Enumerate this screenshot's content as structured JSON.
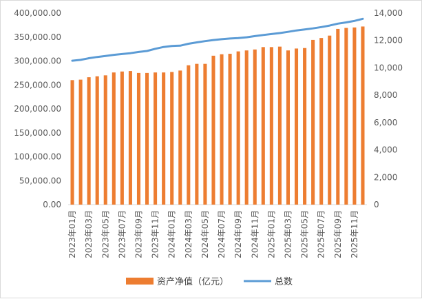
{
  "chart_data": {
    "type": "bar+line",
    "colors": {
      "bar": "#ed7d31",
      "line": "#5b9bd5",
      "axis": "#d9d9d9"
    },
    "left_axis": {
      "ylim": [
        0,
        400000
      ],
      "ticks": [
        "0.00",
        "50,000.00",
        "100,000.00",
        "150,000.00",
        "200,000.00",
        "250,000.00",
        "300,000.00",
        "350,000.00",
        "400,000.00"
      ]
    },
    "right_axis": {
      "ylim": [
        0,
        14000
      ],
      "ticks": [
        "0",
        "2,000",
        "4,000",
        "6,000",
        "8,000",
        "10,000",
        "12,000",
        "14,000"
      ]
    },
    "categories": [
      "2023年01月",
      "2023年02月",
      "2023年03月",
      "2023年04月",
      "2023年05月",
      "2023年06月",
      "2023年07月",
      "2023年08月",
      "2023年09月",
      "2023年10月",
      "2023年11月",
      "2023年12月",
      "2024年01月",
      "2024年02月",
      "2024年03月",
      "2024年04月",
      "2024年05月",
      "2024年06月",
      "2024年07月",
      "2024年08月",
      "2024年09月",
      "2024年10月",
      "2024年11月",
      "2024年12月",
      "2025年01月",
      "2025年02月",
      "2025年03月",
      "2025年04月",
      "2025年05月",
      "2025年06月",
      "2025年07月",
      "2025年08月",
      "2025年09月",
      "2025年10月",
      "2025年11月",
      "2025年12月"
    ],
    "x_tick_labels": [
      "2023年01月",
      "2023年03月",
      "2023年05月",
      "2023年07月",
      "2023年09月",
      "2023年11月",
      "2024年01月",
      "2024年03月",
      "2024年05月",
      "2024年07月",
      "2024年09月",
      "2024年11月",
      "2025年01月",
      "2025年03月",
      "2025年05月",
      "2025年07月",
      "2025年09月",
      "2025年11月"
    ],
    "series": [
      {
        "name": "资产净值（亿元）",
        "type": "bar",
        "axis": "left",
        "values": [
          260000,
          261000,
          266000,
          268000,
          270000,
          276000,
          278000,
          279000,
          275000,
          275000,
          276000,
          276000,
          277000,
          280000,
          291000,
          294000,
          294000,
          311000,
          314000,
          315000,
          320000,
          322000,
          324000,
          329000,
          329000,
          330000,
          322000,
          326000,
          327000,
          344000,
          348000,
          353000,
          367000,
          369000,
          370000,
          372000
        ]
      },
      {
        "name": "总数",
        "type": "line",
        "axis": "right",
        "values": [
          10520,
          10580,
          10700,
          10790,
          10870,
          10950,
          11010,
          11070,
          11160,
          11230,
          11390,
          11520,
          11600,
          11620,
          11760,
          11860,
          11950,
          12030,
          12090,
          12140,
          12170,
          12230,
          12320,
          12400,
          12470,
          12540,
          12630,
          12730,
          12800,
          12880,
          12980,
          13090,
          13230,
          13320,
          13430,
          13580
        ]
      }
    ],
    "grid": false,
    "legend": {
      "position": "bottom",
      "items": [
        "资产净值（亿元）",
        "总数"
      ]
    }
  }
}
